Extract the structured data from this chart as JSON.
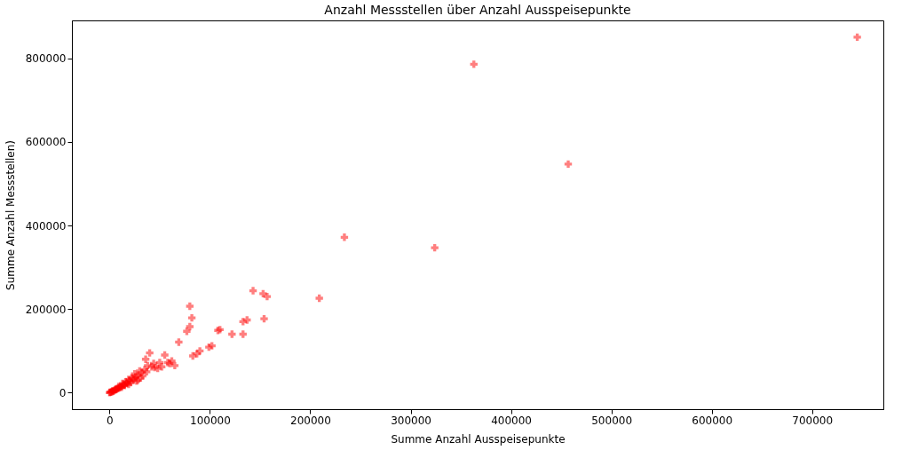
{
  "chart_data": {
    "type": "scatter",
    "title": "Anzahl Messstellen über Anzahl Ausspeisepunkte",
    "xlabel": "Summe Anzahl Ausspeisepunkte",
    "ylabel": "Summe Anzahl Messstellen)",
    "marker": "cross",
    "grid": false,
    "xlim": [
      -37500,
      771000
    ],
    "ylim": [
      -39500,
      891000
    ],
    "xticks": [
      0,
      100000,
      200000,
      300000,
      400000,
      500000,
      600000,
      700000
    ],
    "yticks": [
      0,
      200000,
      400000,
      600000,
      800000
    ],
    "series": [
      {
        "color": "#ff0000",
        "x": [
          745000,
          363000,
          457000,
          234000,
          324000,
          209000,
          143000,
          153000,
          157000,
          154000,
          137000,
          133000,
          133000,
          122000,
          110000,
          108000,
          80000,
          82000,
          80000,
          77000,
          69000,
          99000,
          102000,
          87000,
          83000,
          90000,
          60000,
          62000,
          65000,
          55000,
          50000,
          45000,
          40000,
          38000,
          36000,
          42000,
          35000,
          32000,
          30000,
          28000,
          26000,
          25000,
          24000,
          22000,
          20000,
          19000,
          18000,
          17000,
          16000,
          15000,
          14000,
          13000,
          12000,
          11000,
          10000,
          9000,
          8000,
          7000,
          6000,
          5000,
          4000,
          3000,
          2000,
          1000,
          500,
          0,
          28000,
          33000,
          37000,
          23000,
          21000,
          44000,
          48000,
          52000,
          58000,
          31000,
          27000,
          19000,
          15000,
          12000,
          9000,
          6000,
          3000
        ],
        "values": [
          851000,
          786000,
          547000,
          372000,
          347000,
          226000,
          244000,
          237000,
          230000,
          177000,
          174000,
          170000,
          140000,
          140000,
          151000,
          149000,
          207000,
          179000,
          158000,
          147000,
          121000,
          109000,
          112000,
          93000,
          88000,
          100000,
          70000,
          76000,
          65000,
          90000,
          72000,
          60000,
          95000,
          65000,
          80000,
          62000,
          55000,
          48000,
          52000,
          42000,
          38000,
          45000,
          30000,
          35000,
          28000,
          32000,
          25000,
          22000,
          26000,
          20000,
          18000,
          22000,
          16000,
          14000,
          12000,
          15000,
          10000,
          8000,
          7000,
          6000,
          4000,
          3000,
          2000,
          1000,
          1000,
          0,
          30000,
          40000,
          50000,
          35000,
          24000,
          70000,
          58000,
          62000,
          72000,
          35000,
          28000,
          20000,
          17000,
          13000,
          11000,
          8000,
          4000
        ]
      }
    ]
  }
}
